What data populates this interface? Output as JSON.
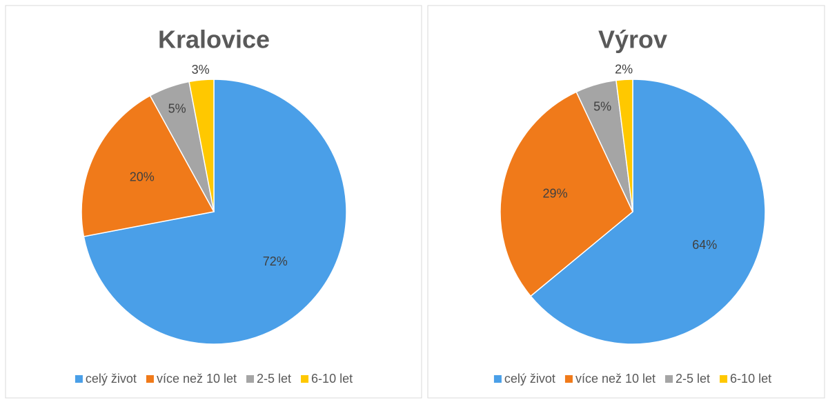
{
  "chart_data": [
    {
      "type": "pie",
      "title": "Kralovice",
      "categories": [
        "celý život",
        "více než 10 let",
        "2-5 let",
        "6-10 let"
      ],
      "values": [
        72,
        20,
        5,
        3
      ],
      "value_labels": [
        "72%",
        "20%",
        "5%",
        "3%"
      ],
      "colors": [
        "#4a9fe8",
        "#f07a1a",
        "#a5a5a5",
        "#ffc800"
      ],
      "legend": "bottom"
    },
    {
      "type": "pie",
      "title": "Výrov",
      "categories": [
        "celý život",
        "více než 10 let",
        "2-5 let",
        "6-10 let"
      ],
      "values": [
        64,
        29,
        5,
        2
      ],
      "value_labels": [
        "64%",
        "29%",
        "5%",
        "2%"
      ],
      "colors": [
        "#4a9fe8",
        "#f07a1a",
        "#a5a5a5",
        "#ffc800"
      ],
      "legend": "bottom"
    }
  ]
}
